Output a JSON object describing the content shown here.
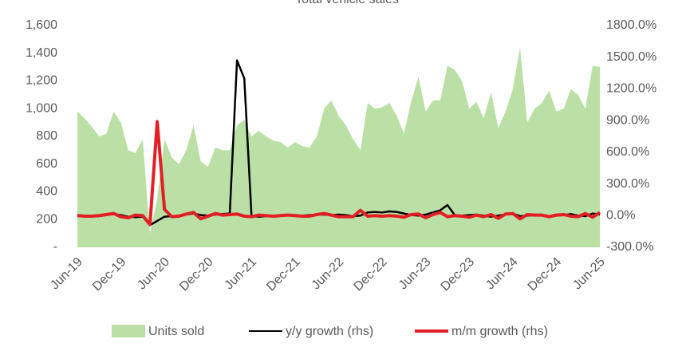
{
  "chart_data": {
    "type": "area_line",
    "title": "Total vehicle sales",
    "categories": [
      "Jun-19",
      null,
      null,
      null,
      null,
      null,
      "Dec-19",
      null,
      null,
      null,
      null,
      null,
      "Jun-20",
      null,
      null,
      null,
      null,
      null,
      "Dec-20",
      null,
      null,
      null,
      null,
      null,
      "Jun-21",
      null,
      null,
      null,
      null,
      null,
      "Dec-21",
      null,
      null,
      null,
      null,
      null,
      "Jun-22",
      null,
      null,
      null,
      null,
      null,
      "Dec-22",
      null,
      null,
      null,
      null,
      null,
      "Jun-23",
      null,
      null,
      null,
      null,
      null,
      "Dec-23",
      null,
      null,
      null,
      null,
      null,
      "Jun-24",
      null,
      null,
      null,
      null,
      null,
      "Dec-24",
      null,
      null,
      null,
      null,
      null,
      "Jun-25"
    ],
    "series": [
      {
        "name": "Units sold",
        "color": "#bbe0a6",
        "kind": "area",
        "values": [
          980,
          930,
          870,
          800,
          820,
          980,
          900,
          700,
          680,
          780,
          100,
          350,
          780,
          650,
          600,
          700,
          880,
          620,
          580,
          720,
          700,
          700,
          880,
          920,
          800,
          840,
          800,
          770,
          760,
          720,
          760,
          730,
          720,
          800,
          1000,
          1060,
          950,
          880,
          780,
          700,
          1040,
          1000,
          1010,
          1040,
          950,
          820,
          1050,
          1230,
          980,
          1060,
          1060,
          1310,
          1280,
          1200,
          1000,
          1050,
          930,
          1120,
          860,
          980,
          1140,
          1440,
          900,
          1000,
          1040,
          1130,
          980,
          1000,
          1140,
          1100,
          1000,
          1310,
          1300
        ]
      },
      {
        "name": "y/y growth (rhs)",
        "color": "#000000",
        "kind": "line",
        "axis": "y2",
        "values": [
          5,
          0,
          -5,
          -5,
          5,
          15,
          5,
          -10,
          -15,
          -10,
          -90,
          -50,
          -10,
          -5,
          0,
          10,
          20,
          5,
          0,
          10,
          15,
          20,
          1470,
          1300,
          -5,
          -10,
          -5,
          -5,
          0,
          5,
          0,
          0,
          5,
          10,
          10,
          5,
          10,
          5,
          -5,
          0,
          30,
          35,
          30,
          40,
          35,
          20,
          5,
          0,
          10,
          30,
          50,
          100,
          5,
          0,
          5,
          10,
          0,
          -10,
          0,
          10,
          20,
          -5,
          0,
          5,
          10,
          -10,
          0,
          5,
          15,
          0,
          -5,
          20,
          10
        ]
      },
      {
        "name": "m/m growth (rhs)",
        "color": "#e31e24",
        "kind": "line",
        "axis": "y2",
        "values": [
          0,
          -5,
          -5,
          0,
          10,
          20,
          -10,
          -20,
          5,
          0,
          -85,
          890,
          60,
          -10,
          -5,
          15,
          30,
          -30,
          -5,
          20,
          5,
          10,
          15,
          -5,
          -10,
          5,
          0,
          -5,
          0,
          5,
          0,
          -5,
          -5,
          10,
          20,
          5,
          -10,
          -10,
          -10,
          50,
          -5,
          0,
          -5,
          0,
          -5,
          -15,
          10,
          15,
          -20,
          10,
          30,
          -10,
          0,
          -5,
          -15,
          5,
          -10,
          10,
          -25,
          15,
          20,
          -30,
          10,
          5,
          5,
          -10,
          5,
          10,
          -5,
          -10,
          20,
          -15,
          30
        ]
      }
    ],
    "ylim": [
      0,
      1600
    ],
    "yticks": [
      {
        "value": 0,
        "label": "-"
      },
      200,
      400,
      600,
      800,
      {
        "value": 1000,
        "label": "1,000"
      },
      {
        "value": 1200,
        "label": "1,200"
      },
      {
        "value": 1400,
        "label": "1,400"
      },
      {
        "value": 1600,
        "label": "1,600"
      }
    ],
    "y2lim": [
      -300,
      1800
    ],
    "y2ticks": [
      {
        "value": -300,
        "label": "-300.0%"
      },
      {
        "value": 0,
        "label": "0.0%"
      },
      {
        "value": 300,
        "label": "300.0%"
      },
      {
        "value": 600,
        "label": "600.0%"
      },
      {
        "value": 900,
        "label": "900.0%"
      },
      {
        "value": 1200,
        "label": "1200.0%"
      },
      {
        "value": 1500,
        "label": "1500.0%"
      },
      {
        "value": 1800,
        "label": "1800.0%"
      }
    ],
    "legend": "bottom"
  }
}
